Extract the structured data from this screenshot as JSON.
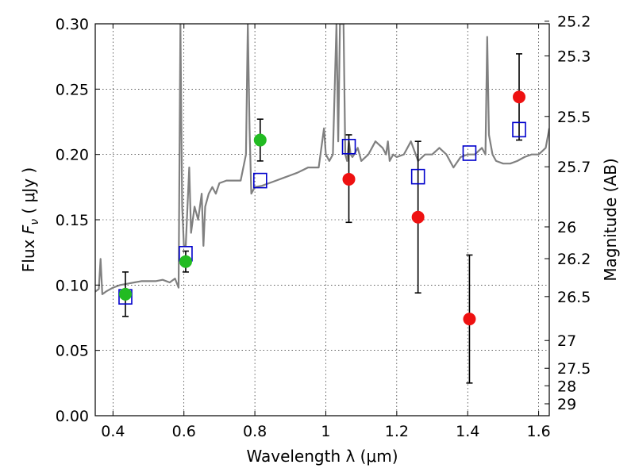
{
  "chart_data": {
    "type": "scatter",
    "xlabel": "Wavelength  λ (μm)",
    "ylabel": "Flux  F_ν  ( μJy )",
    "ylabel_parts": {
      "prefix": "Flux  ",
      "symbol": "F",
      "subscript": "ν",
      "suffix": "  ( μJy )"
    },
    "y2label": "Magnitude (AB)",
    "xlim": [
      0.35,
      1.63
    ],
    "ylim": [
      0.0,
      0.3
    ],
    "grid": true,
    "x_ticks": [
      {
        "value": 0.4,
        "label": "0.4"
      },
      {
        "value": 0.6,
        "label": "0.6"
      },
      {
        "value": 0.8,
        "label": "0.8"
      },
      {
        "value": 1.0,
        "label": "1"
      },
      {
        "value": 1.2,
        "label": "1.2"
      },
      {
        "value": 1.4,
        "label": "1.4"
      },
      {
        "value": 1.6,
        "label": "1.6"
      }
    ],
    "y_ticks": [
      {
        "value": 0.0,
        "label": "0.00"
      },
      {
        "value": 0.05,
        "label": "0.05"
      },
      {
        "value": 0.1,
        "label": "0.10"
      },
      {
        "value": 0.15,
        "label": "0.15"
      },
      {
        "value": 0.2,
        "label": "0.20"
      },
      {
        "value": 0.25,
        "label": "0.25"
      },
      {
        "value": 0.3,
        "label": "0.30"
      }
    ],
    "y2_ticks": [
      {
        "value": 25.2,
        "label": "25.2"
      },
      {
        "value": 25.3,
        "label": "25.3"
      },
      {
        "value": 25.5,
        "label": "25.5"
      },
      {
        "value": 25.7,
        "label": "25.7"
      },
      {
        "value": 26.0,
        "label": "26"
      },
      {
        "value": 26.2,
        "label": "26.2"
      },
      {
        "value": 26.5,
        "label": "26.5"
      },
      {
        "value": 27.0,
        "label": "27"
      },
      {
        "value": 27.5,
        "label": "27.5"
      },
      {
        "value": 28.0,
        "label": "28"
      },
      {
        "value": 29.0,
        "label": "29"
      }
    ],
    "series": [
      {
        "style": "line",
        "color": "#808080",
        "x": [
          0.35,
          0.36,
          0.365,
          0.37,
          0.38,
          0.4,
          0.42,
          0.44,
          0.46,
          0.48,
          0.5,
          0.52,
          0.54,
          0.56,
          0.575,
          0.585,
          0.59,
          0.595,
          0.6,
          0.605,
          0.61,
          0.615,
          0.62,
          0.63,
          0.64,
          0.65,
          0.655,
          0.66,
          0.67,
          0.68,
          0.69,
          0.7,
          0.72,
          0.74,
          0.76,
          0.775,
          0.78,
          0.785,
          0.79,
          0.8,
          0.82,
          0.84,
          0.86,
          0.88,
          0.9,
          0.92,
          0.95,
          0.98,
          0.995,
          1.0,
          1.01,
          1.02,
          1.03,
          1.035,
          1.04,
          1.05,
          1.055,
          1.06,
          1.065,
          1.07,
          1.075,
          1.08,
          1.09,
          1.1,
          1.12,
          1.14,
          1.16,
          1.17,
          1.175,
          1.18,
          1.19,
          1.2,
          1.22,
          1.24,
          1.26,
          1.28,
          1.3,
          1.32,
          1.34,
          1.36,
          1.38,
          1.4,
          1.42,
          1.44,
          1.45,
          1.455,
          1.46,
          1.47,
          1.48,
          1.5,
          1.52,
          1.54,
          1.56,
          1.58,
          1.6,
          1.62,
          1.63
        ],
        "y": [
          0.095,
          0.097,
          0.12,
          0.093,
          0.095,
          0.098,
          0.1,
          0.101,
          0.102,
          0.103,
          0.103,
          0.103,
          0.104,
          0.102,
          0.105,
          0.098,
          0.3,
          0.16,
          0.13,
          0.13,
          0.16,
          0.19,
          0.14,
          0.16,
          0.15,
          0.17,
          0.13,
          0.16,
          0.17,
          0.175,
          0.17,
          0.178,
          0.18,
          0.18,
          0.18,
          0.2,
          0.3,
          0.22,
          0.17,
          0.175,
          0.176,
          0.178,
          0.18,
          0.182,
          0.184,
          0.186,
          0.19,
          0.19,
          0.22,
          0.2,
          0.195,
          0.2,
          0.3,
          0.21,
          0.3,
          0.3,
          0.2,
          0.195,
          0.21,
          0.2,
          0.198,
          0.2,
          0.205,
          0.195,
          0.2,
          0.21,
          0.205,
          0.2,
          0.21,
          0.195,
          0.2,
          0.198,
          0.2,
          0.21,
          0.195,
          0.2,
          0.2,
          0.205,
          0.2,
          0.19,
          0.198,
          0.2,
          0.2,
          0.205,
          0.2,
          0.29,
          0.215,
          0.2,
          0.195,
          0.193,
          0.193,
          0.195,
          0.198,
          0.2,
          0.2,
          0.205,
          0.22
        ]
      },
      {
        "style": "markers",
        "marker": "square",
        "color": "#0000cc",
        "x": [
          0.435,
          0.605,
          0.815,
          1.065,
          1.26,
          1.405,
          1.545
        ],
        "y": [
          0.091,
          0.124,
          0.18,
          0.206,
          0.183,
          0.201,
          0.219
        ]
      },
      {
        "style": "markers",
        "marker": "circle",
        "color": "#22bb22",
        "x": [
          0.435,
          0.605,
          0.815
        ],
        "y": [
          0.093,
          0.118,
          0.211
        ],
        "yerr_low": [
          0.076,
          0.11,
          0.195
        ],
        "yerr_high": [
          0.11,
          0.126,
          0.227
        ]
      },
      {
        "style": "markers",
        "marker": "circle",
        "color": "#ee1111",
        "x": [
          1.065,
          1.26,
          1.405,
          1.545
        ],
        "y": [
          0.181,
          0.152,
          0.074,
          0.244
        ],
        "yerr_low": [
          0.148,
          0.094,
          0.025,
          0.211
        ],
        "yerr_high": [
          0.215,
          0.21,
          0.123,
          0.277
        ]
      }
    ]
  }
}
